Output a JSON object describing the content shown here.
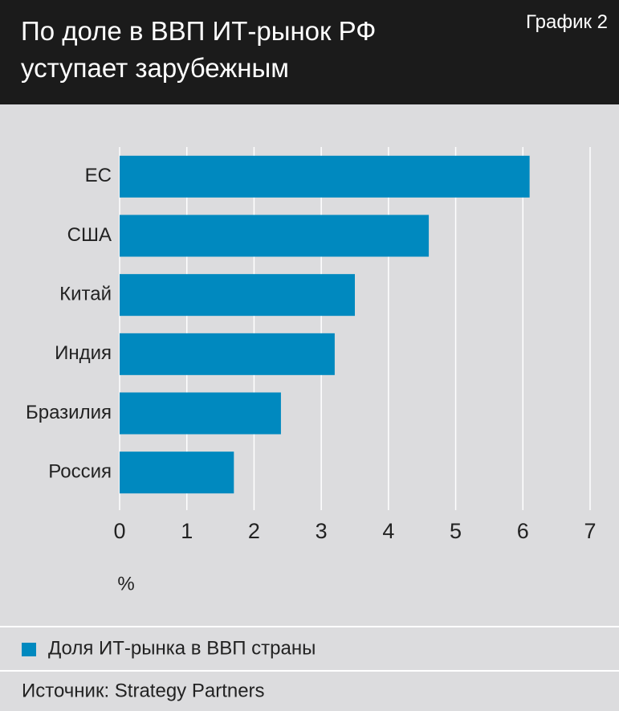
{
  "chart_data": {
    "type": "barh",
    "title": "По доле в ВВП ИТ-рынок РФ уступает зарубежным",
    "label": "График 2",
    "categories": [
      "ЕС",
      "США",
      "Китай",
      "Индия",
      "Бразилия",
      "Россия"
    ],
    "series": [
      {
        "name": "Доля ИТ-рынка в ВВП страны",
        "color": "#0089bf",
        "values": [
          6.1,
          4.6,
          3.5,
          3.2,
          2.4,
          1.7
        ]
      }
    ],
    "xlabel": "%",
    "xlim": [
      0,
      7
    ],
    "xticks": [
      0,
      1,
      2,
      3,
      4,
      5,
      6,
      7
    ],
    "grid": true,
    "source": "Источник: Strategy Partners"
  }
}
